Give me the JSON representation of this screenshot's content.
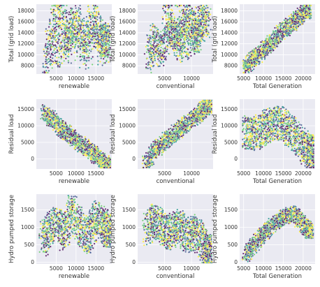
{
  "chart_data": [
    {
      "type": "scatter",
      "xlabel": "renewable",
      "ylabel": "Total (grid load)",
      "xlim": [
        0,
        19000
      ],
      "ylim": [
        6500,
        19200
      ],
      "xticks": [
        5000,
        10000,
        15000
      ],
      "yticks": [
        8000,
        10000,
        12000,
        14000,
        16000,
        18000
      ],
      "grid": true,
      "palette": [
        "#440154",
        "#3b528b",
        "#21918c",
        "#5ec962",
        "#fde725"
      ],
      "x": [
        2500,
        4000,
        6000,
        8000,
        10000,
        12000,
        14000,
        16000,
        18000,
        3000,
        6500,
        9000,
        11500,
        15000,
        17500
      ],
      "y": [
        8000,
        14500,
        18500,
        12000,
        16500,
        9500,
        17000,
        13000,
        11000,
        11500,
        10500,
        15500,
        13500,
        15000,
        12500
      ],
      "shape": "band"
    },
    {
      "type": "scatter",
      "xlabel": "conventional",
      "ylabel": "Total (grid load)",
      "xlim": [
        0,
        14000
      ],
      "ylim": [
        6500,
        19200
      ],
      "xticks": [
        5000,
        10000
      ],
      "yticks": [
        8000,
        10000,
        12000,
        14000,
        16000,
        18000
      ],
      "grid": true,
      "palette": [
        "#440154",
        "#3b528b",
        "#21918c",
        "#5ec962",
        "#fde725"
      ],
      "x": [
        2000,
        3000,
        4500,
        6000,
        7500,
        9000,
        10500,
        12000,
        13000,
        5000,
        8000,
        11000
      ],
      "y": [
        9000,
        13000,
        10500,
        15000,
        12500,
        17000,
        14000,
        16500,
        15500,
        17500,
        11500,
        13500
      ],
      "shape": "band"
    },
    {
      "type": "scatter",
      "xlabel": "Total Generation",
      "ylabel": "Total (grid load)",
      "xlim": [
        4000,
        23000
      ],
      "ylim": [
        6500,
        19200
      ],
      "xticks": [
        5000,
        10000,
        15000,
        20000
      ],
      "yticks": [
        8000,
        10000,
        12000,
        14000,
        16000,
        18000
      ],
      "grid": true,
      "palette": [
        "#440154",
        "#3b528b",
        "#21918c",
        "#5ec962",
        "#fde725"
      ],
      "x": [
        5500,
        7000,
        9000,
        11000,
        13000,
        15000,
        17000,
        19000,
        21000
      ],
      "y": [
        7500,
        9000,
        10000,
        11500,
        13000,
        14500,
        15500,
        17000,
        18000
      ],
      "shape": "rising"
    },
    {
      "type": "scatter",
      "xlabel": "renewable",
      "ylabel": "Residual load",
      "xlim": [
        0,
        19000
      ],
      "ylim": [
        -3000,
        18000
      ],
      "xticks": [
        5000,
        10000,
        15000
      ],
      "yticks": [
        0,
        5000,
        10000,
        15000
      ],
      "grid": true,
      "palette": [
        "#440154",
        "#3b528b",
        "#21918c",
        "#5ec962",
        "#fde725"
      ],
      "x": [
        2000,
        4000,
        6000,
        8000,
        10000,
        12000,
        14000,
        16000,
        18000
      ],
      "y": [
        14000,
        12000,
        9500,
        7500,
        5500,
        4000,
        2000,
        0,
        -2000
      ],
      "shape": "falling"
    },
    {
      "type": "scatter",
      "xlabel": "conventional",
      "ylabel": "Residual load",
      "xlim": [
        0,
        14000
      ],
      "ylim": [
        -3000,
        18000
      ],
      "xticks": [
        5000,
        10000
      ],
      "yticks": [
        0,
        5000,
        10000,
        15000
      ],
      "grid": true,
      "palette": [
        "#440154",
        "#3b528b",
        "#21918c",
        "#5ec962",
        "#fde725"
      ],
      "x": [
        1500,
        3000,
        4500,
        6000,
        7500,
        9000,
        10500,
        12000,
        13000
      ],
      "y": [
        -1500,
        2000,
        4500,
        6500,
        8500,
        10500,
        12500,
        14500,
        16000
      ],
      "shape": "rising"
    },
    {
      "type": "scatter",
      "xlabel": "Total Generation",
      "ylabel": "Residual load",
      "xlim": [
        4000,
        23000
      ],
      "ylim": [
        -3000,
        18000
      ],
      "xticks": [
        5000,
        10000,
        15000,
        20000
      ],
      "yticks": [
        0,
        5000,
        10000,
        15000
      ],
      "grid": true,
      "palette": [
        "#440154",
        "#3b528b",
        "#21918c",
        "#5ec962",
        "#fde725"
      ],
      "x": [
        5000,
        7500,
        10000,
        12500,
        15000,
        17500,
        20000,
        22000
      ],
      "y": [
        8000,
        7500,
        9000,
        11000,
        10500,
        7500,
        4000,
        2000
      ],
      "shape": "band"
    },
    {
      "type": "scatter",
      "xlabel": "renewable",
      "ylabel": "Hydro pumped storage",
      "xlim": [
        0,
        19000
      ],
      "ylim": [
        -50,
        1950
      ],
      "xticks": [
        5000,
        10000,
        15000
      ],
      "yticks": [
        0,
        500,
        1000,
        1500
      ],
      "grid": true,
      "palette": [
        "#440154",
        "#3b528b",
        "#21918c",
        "#5ec962",
        "#fde725"
      ],
      "x": [
        1500,
        3000,
        5000,
        7000,
        9000,
        11000,
        13000,
        15000,
        17000,
        18000
      ],
      "y": [
        600,
        900,
        1200,
        800,
        1500,
        1000,
        700,
        1300,
        1100,
        900
      ],
      "shape": "band"
    },
    {
      "type": "scatter",
      "xlabel": "conventional",
      "ylabel": "Hydro pumped storage",
      "xlim": [
        0,
        14000
      ],
      "ylim": [
        -50,
        1950
      ],
      "xticks": [
        5000,
        10000
      ],
      "yticks": [
        0,
        500,
        1000,
        1500
      ],
      "grid": true,
      "palette": [
        "#440154",
        "#3b528b",
        "#21918c",
        "#5ec962",
        "#fde725"
      ],
      "x": [
        1500,
        3000,
        4500,
        6000,
        7500,
        9000,
        10500,
        12000,
        13000
      ],
      "y": [
        900,
        1200,
        1000,
        800,
        1100,
        700,
        900,
        600,
        300
      ],
      "shape": "band"
    },
    {
      "type": "scatter",
      "xlabel": "Total Generation",
      "ylabel": "Hydro pumped storage",
      "xlim": [
        4000,
        23000
      ],
      "ylim": [
        -50,
        1950
      ],
      "xticks": [
        5000,
        10000,
        15000,
        20000
      ],
      "yticks": [
        0,
        500,
        1000,
        1500
      ],
      "grid": true,
      "palette": [
        "#440154",
        "#3b528b",
        "#21918c",
        "#5ec962",
        "#fde725"
      ],
      "x": [
        5500,
        7500,
        10000,
        12500,
        15000,
        17500,
        20000,
        21500
      ],
      "y": [
        200,
        500,
        800,
        1100,
        1300,
        1400,
        1100,
        900
      ],
      "shape": "rising"
    }
  ]
}
